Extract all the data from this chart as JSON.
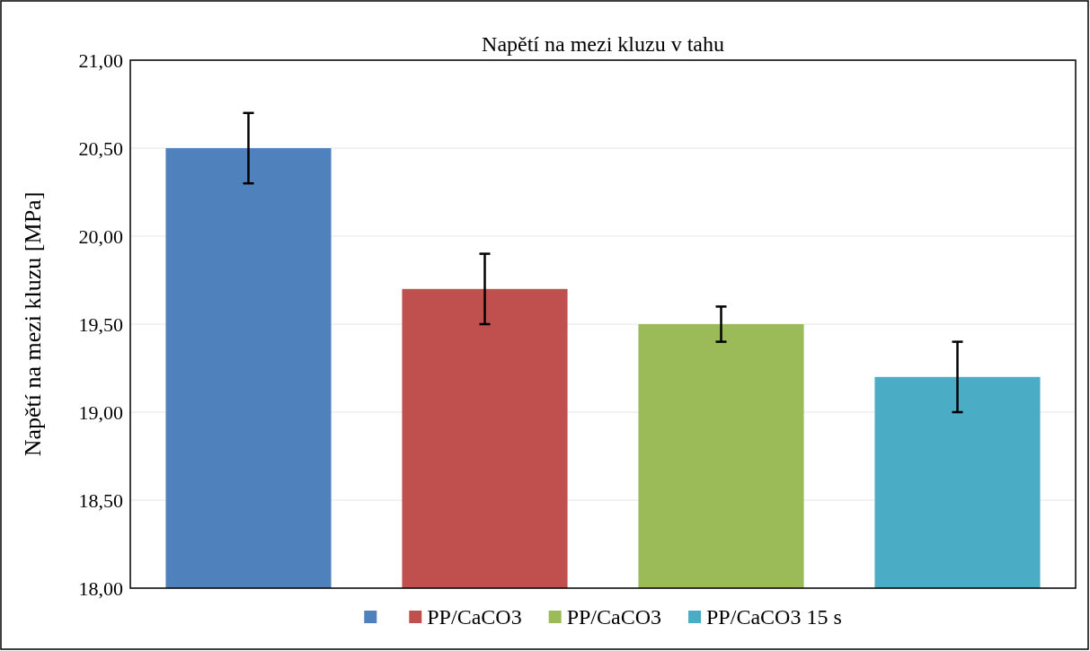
{
  "chart_data": {
    "type": "bar",
    "title": "Napětí na mezi kluzu v tahu",
    "ylabel": "Napětí na mezi kluzu [MPa]",
    "categories": [
      null,
      null,
      null,
      null
    ],
    "series": [
      {
        "color": "#4f81bd",
        "values": [
          20.5,
          null,
          null,
          null
        ],
        "errors": [
          0.2,
          null,
          null,
          null
        ]
      },
      {
        "name": "PP/CaCO3",
        "color": "#c0504d",
        "values": [
          null,
          19.7,
          null,
          null
        ],
        "errors": [
          null,
          0.2,
          null,
          null
        ]
      },
      {
        "name": "PP/CaCO3",
        "color": "#9bbb59",
        "values": [
          null,
          null,
          19.5,
          null
        ],
        "errors": [
          null,
          null,
          0.1,
          null
        ]
      },
      {
        "name": "PP/CaCO3 15 s",
        "color": "#4bacc6",
        "values": [
          null,
          null,
          null,
          19.2
        ],
        "errors": [
          null,
          null,
          null,
          0.2
        ]
      }
    ],
    "ylim": [
      18,
      21
    ],
    "yticks": [
      {
        "value": 18,
        "label": "18,00"
      },
      {
        "value": 18.5,
        "label": "18,50"
      },
      {
        "value": 19,
        "label": "19,00"
      },
      {
        "value": 19.5,
        "label": "19,50"
      },
      {
        "value": 20,
        "label": "20,00"
      },
      {
        "value": 20.5,
        "label": "20,50"
      },
      {
        "value": 21,
        "label": "21,00"
      }
    ],
    "grid": "y",
    "legend": "bottom"
  }
}
